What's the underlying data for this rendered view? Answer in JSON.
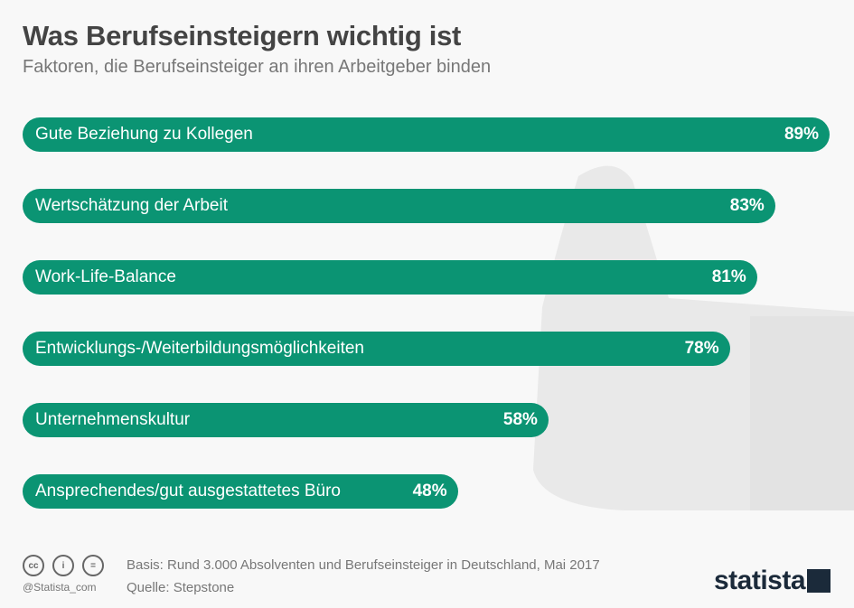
{
  "chart_data": {
    "type": "bar",
    "orientation": "horizontal",
    "title": "Was Berufseinsteigern wichtig ist",
    "subtitle": "Faktoren, die Berufseinsteiger an ihren Arbeitgeber binden",
    "categories": [
      "Gute Beziehung zu Kollegen",
      "Wertschätzung der Arbeit",
      "Work-Life-Balance",
      "Entwicklungs-/Weiterbildungsmöglichkeiten",
      "Unternehmenskultur",
      "Ansprechendes/gut ausgestattetes Büro"
    ],
    "values": [
      89,
      83,
      81,
      78,
      58,
      48
    ],
    "labels": [
      "89%",
      "83%",
      "81%",
      "78%",
      "58%",
      "48%"
    ],
    "unit": "%",
    "xlim": [
      0,
      89
    ],
    "grid": false,
    "bar_color": "#0b9473"
  },
  "footer": {
    "basis": "Basis: Rund 3.000 Absolventen und Berufseinsteiger in Deutschland, Mai 2017",
    "source": "Quelle: Stepstone",
    "handle": "@Statista_com",
    "license_icons": [
      "cc-icon",
      "by-icon",
      "nd-icon"
    ],
    "logo": "statista"
  }
}
